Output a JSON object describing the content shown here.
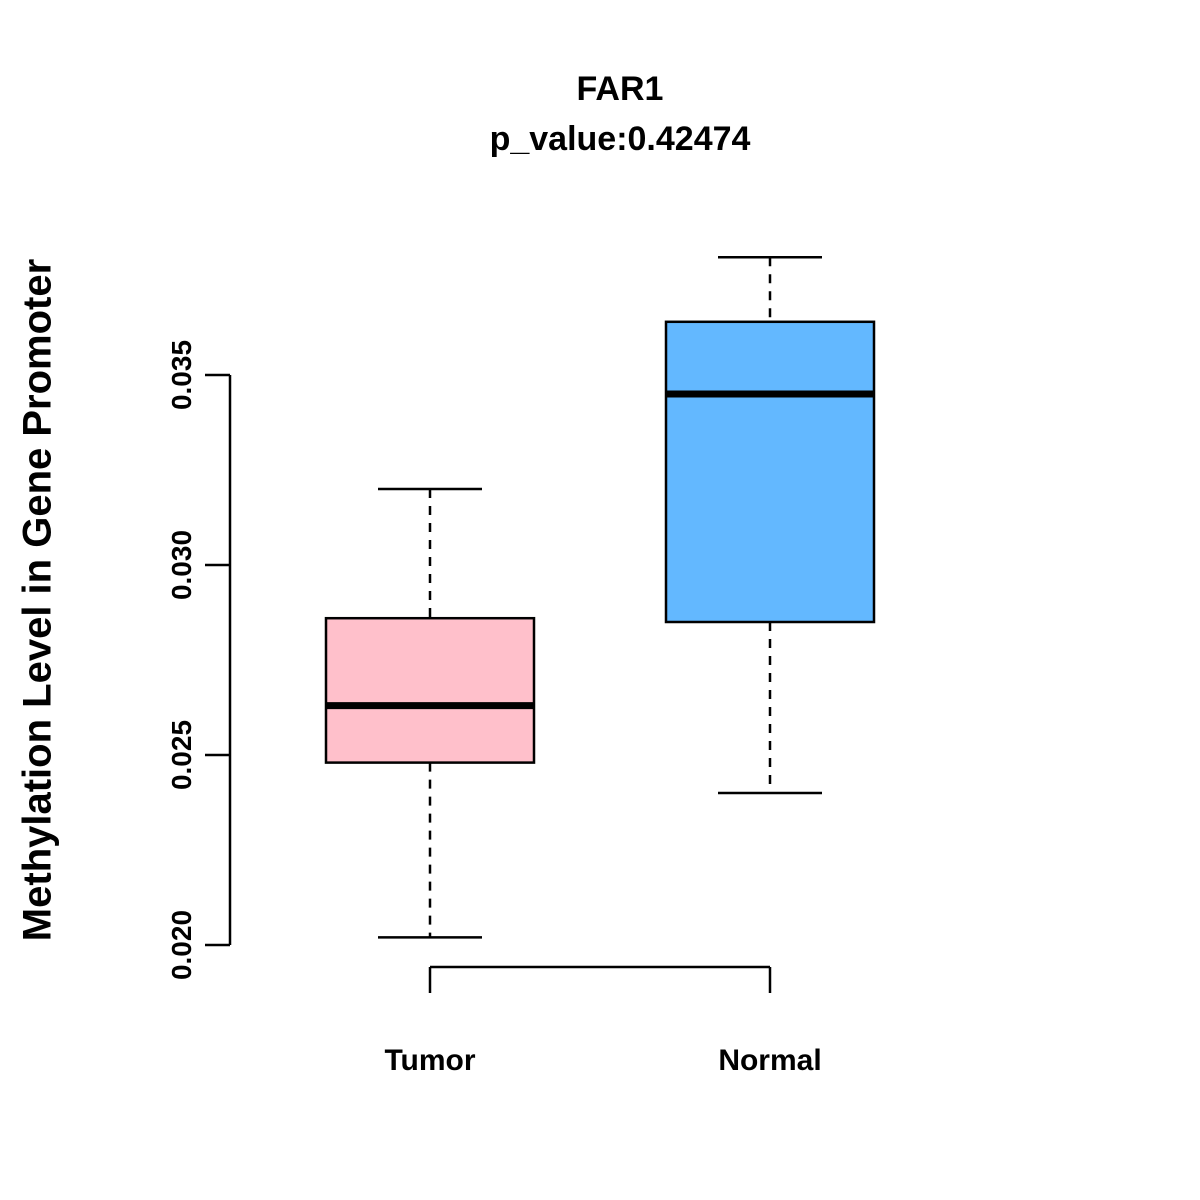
{
  "title": "FAR1",
  "subtitle": "p_value:0.42474",
  "ylabel": "Methylation Level in Gene Promoter",
  "chart_data": {
    "type": "boxplot",
    "title": "FAR1",
    "subtitle": "p_value:0.42474",
    "ylabel": "Methylation Level in Gene Promoter",
    "xlabel": "",
    "grid": false,
    "legend": "none",
    "ylim": [
      0.0185,
      0.039
    ],
    "y_tick_values": [
      0.02,
      0.025,
      0.03,
      0.035
    ],
    "y_tick_labels": [
      "0.020",
      "0.025",
      "0.030",
      "0.035"
    ],
    "categories": [
      "Tumor",
      "Normal"
    ],
    "series": [
      {
        "name": "Tumor",
        "color": "#FFC0CB",
        "whisker_low": 0.0202,
        "q1": 0.0248,
        "median": 0.0263,
        "q3": 0.0286,
        "whisker_high": 0.032
      },
      {
        "name": "Normal",
        "color": "#63B8FF",
        "whisker_low": 0.024,
        "q1": 0.0285,
        "median": 0.0345,
        "q3": 0.0364,
        "whisker_high": 0.0381
      }
    ]
  }
}
